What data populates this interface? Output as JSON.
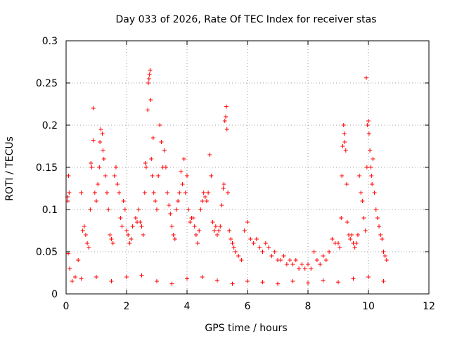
{
  "chart_data": {
    "type": "scatter",
    "title": "Day 033 of 2026, Rate Of TEC Index for receiver stas",
    "xlabel": "GPS time / hours",
    "ylabel": "ROTI / TECUs",
    "xlim": [
      0,
      12
    ],
    "ylim": [
      0,
      0.3
    ],
    "x_ticks": [
      "0",
      "2",
      "4",
      "6",
      "8",
      "10",
      "12"
    ],
    "x_tick_values": [
      0,
      2,
      4,
      6,
      8,
      10,
      12
    ],
    "y_ticks": [
      "0",
      "0.05",
      "0.1",
      "0.15",
      "0.2",
      "0.25",
      "0.3"
    ],
    "y_tick_values": [
      0,
      0.05,
      0.1,
      0.15,
      0.2,
      0.25,
      0.3
    ],
    "grid": true,
    "marker": "+",
    "color": "#ff0000",
    "data_x_range": [
      0,
      10.65
    ],
    "series": [
      {
        "name": "ROTI",
        "points": [
          [
            0.05,
            0.115
          ],
          [
            0.06,
            0.11
          ],
          [
            0.08,
            0.14
          ],
          [
            0.1,
            0.12
          ],
          [
            0.07,
            0.048
          ],
          [
            0.12,
            0.03
          ],
          [
            0.3,
            0.02
          ],
          [
            0.4,
            0.04
          ],
          [
            0.5,
            0.12
          ],
          [
            0.55,
            0.075
          ],
          [
            0.6,
            0.08
          ],
          [
            0.65,
            0.07
          ],
          [
            0.7,
            0.06
          ],
          [
            0.75,
            0.055
          ],
          [
            0.8,
            0.1
          ],
          [
            0.82,
            0.155
          ],
          [
            0.85,
            0.15
          ],
          [
            0.9,
            0.22
          ],
          [
            0.9,
            0.182
          ],
          [
            0.95,
            0.12
          ],
          [
            1.0,
            0.11
          ],
          [
            1.05,
            0.13
          ],
          [
            1.1,
            0.15
          ],
          [
            1.12,
            0.18
          ],
          [
            1.15,
            0.195
          ],
          [
            1.2,
            0.19
          ],
          [
            1.22,
            0.17
          ],
          [
            1.25,
            0.16
          ],
          [
            1.3,
            0.14
          ],
          [
            1.35,
            0.12
          ],
          [
            1.4,
            0.1
          ],
          [
            1.45,
            0.07
          ],
          [
            1.5,
            0.065
          ],
          [
            1.55,
            0.06
          ],
          [
            1.6,
            0.14
          ],
          [
            1.65,
            0.15
          ],
          [
            1.7,
            0.13
          ],
          [
            1.75,
            0.12
          ],
          [
            1.8,
            0.09
          ],
          [
            1.85,
            0.08
          ],
          [
            1.9,
            0.11
          ],
          [
            1.95,
            0.1
          ],
          [
            2.0,
            0.075
          ],
          [
            2.05,
            0.07
          ],
          [
            2.1,
            0.06
          ],
          [
            2.15,
            0.065
          ],
          [
            2.2,
            0.08
          ],
          [
            2.3,
            0.09
          ],
          [
            2.35,
            0.085
          ],
          [
            2.4,
            0.1
          ],
          [
            2.45,
            0.085
          ],
          [
            2.5,
            0.08
          ],
          [
            2.55,
            0.07
          ],
          [
            2.6,
            0.12
          ],
          [
            2.62,
            0.155
          ],
          [
            2.65,
            0.15
          ],
          [
            2.7,
            0.218
          ],
          [
            2.72,
            0.25
          ],
          [
            2.74,
            0.255
          ],
          [
            2.76,
            0.26
          ],
          [
            2.78,
            0.265
          ],
          [
            2.8,
            0.23
          ],
          [
            2.82,
            0.16
          ],
          [
            2.85,
            0.14
          ],
          [
            2.88,
            0.185
          ],
          [
            2.9,
            0.12
          ],
          [
            2.95,
            0.11
          ],
          [
            3.0,
            0.1
          ],
          [
            3.05,
            0.14
          ],
          [
            3.1,
            0.2
          ],
          [
            3.15,
            0.18
          ],
          [
            3.2,
            0.15
          ],
          [
            3.25,
            0.17
          ],
          [
            3.3,
            0.15
          ],
          [
            3.35,
            0.12
          ],
          [
            3.4,
            0.105
          ],
          [
            3.45,
            0.095
          ],
          [
            3.5,
            0.08
          ],
          [
            3.55,
            0.07
          ],
          [
            3.6,
            0.065
          ],
          [
            3.65,
            0.1
          ],
          [
            3.7,
            0.11
          ],
          [
            3.75,
            0.12
          ],
          [
            3.8,
            0.145
          ],
          [
            3.85,
            0.13
          ],
          [
            3.9,
            0.16
          ],
          [
            3.95,
            0.12
          ],
          [
            4.0,
            0.14
          ],
          [
            4.05,
            0.1
          ],
          [
            4.1,
            0.085
          ],
          [
            4.15,
            0.09
          ],
          [
            4.2,
            0.09
          ],
          [
            4.25,
            0.08
          ],
          [
            4.3,
            0.07
          ],
          [
            4.35,
            0.06
          ],
          [
            4.4,
            0.075
          ],
          [
            4.45,
            0.1
          ],
          [
            4.5,
            0.11
          ],
          [
            4.55,
            0.12
          ],
          [
            4.6,
            0.115
          ],
          [
            4.65,
            0.11
          ],
          [
            4.7,
            0.12
          ],
          [
            4.75,
            0.165
          ],
          [
            4.8,
            0.14
          ],
          [
            4.85,
            0.085
          ],
          [
            4.9,
            0.075
          ],
          [
            4.95,
            0.08
          ],
          [
            5.0,
            0.07
          ],
          [
            5.05,
            0.075
          ],
          [
            5.1,
            0.08
          ],
          [
            5.15,
            0.105
          ],
          [
            5.2,
            0.125
          ],
          [
            5.22,
            0.13
          ],
          [
            5.25,
            0.205
          ],
          [
            5.28,
            0.21
          ],
          [
            5.3,
            0.222
          ],
          [
            5.32,
            0.195
          ],
          [
            5.35,
            0.12
          ],
          [
            5.4,
            0.075
          ],
          [
            5.45,
            0.065
          ],
          [
            5.5,
            0.06
          ],
          [
            5.55,
            0.055
          ],
          [
            5.6,
            0.05
          ],
          [
            5.7,
            0.045
          ],
          [
            5.8,
            0.04
          ],
          [
            5.9,
            0.075
          ],
          [
            6.0,
            0.085
          ],
          [
            6.1,
            0.065
          ],
          [
            6.2,
            0.06
          ],
          [
            6.3,
            0.065
          ],
          [
            6.4,
            0.055
          ],
          [
            6.5,
            0.05
          ],
          [
            6.6,
            0.06
          ],
          [
            6.7,
            0.055
          ],
          [
            6.8,
            0.045
          ],
          [
            6.9,
            0.05
          ],
          [
            7.0,
            0.04
          ],
          [
            7.1,
            0.04
          ],
          [
            7.2,
            0.045
          ],
          [
            7.3,
            0.035
          ],
          [
            7.4,
            0.04
          ],
          [
            7.5,
            0.035
          ],
          [
            7.6,
            0.04
          ],
          [
            7.7,
            0.03
          ],
          [
            7.8,
            0.035
          ],
          [
            7.9,
            0.03
          ],
          [
            8.0,
            0.035
          ],
          [
            8.1,
            0.03
          ],
          [
            8.2,
            0.05
          ],
          [
            8.3,
            0.04
          ],
          [
            8.4,
            0.035
          ],
          [
            8.5,
            0.045
          ],
          [
            8.6,
            0.04
          ],
          [
            8.7,
            0.05
          ],
          [
            8.8,
            0.065
          ],
          [
            8.9,
            0.06
          ],
          [
            9.0,
            0.06
          ],
          [
            9.05,
            0.055
          ],
          [
            9.1,
            0.09
          ],
          [
            9.12,
            0.14
          ],
          [
            9.15,
            0.175
          ],
          [
            9.18,
            0.2
          ],
          [
            9.2,
            0.19
          ],
          [
            9.22,
            0.18
          ],
          [
            9.25,
            0.17
          ],
          [
            9.28,
            0.13
          ],
          [
            9.3,
            0.085
          ],
          [
            9.35,
            0.07
          ],
          [
            9.4,
            0.065
          ],
          [
            9.45,
            0.07
          ],
          [
            9.5,
            0.06
          ],
          [
            9.55,
            0.055
          ],
          [
            9.6,
            0.06
          ],
          [
            9.65,
            0.07
          ],
          [
            9.7,
            0.14
          ],
          [
            9.75,
            0.12
          ],
          [
            9.8,
            0.11
          ],
          [
            9.85,
            0.09
          ],
          [
            9.9,
            0.075
          ],
          [
            9.93,
            0.256
          ],
          [
            9.95,
            0.15
          ],
          [
            9.97,
            0.2
          ],
          [
            10.0,
            0.205
          ],
          [
            10.02,
            0.19
          ],
          [
            10.05,
            0.17
          ],
          [
            10.08,
            0.15
          ],
          [
            10.1,
            0.14
          ],
          [
            10.12,
            0.13
          ],
          [
            10.15,
            0.16
          ],
          [
            10.2,
            0.12
          ],
          [
            10.25,
            0.1
          ],
          [
            10.3,
            0.09
          ],
          [
            10.35,
            0.08
          ],
          [
            10.4,
            0.07
          ],
          [
            10.45,
            0.065
          ],
          [
            10.5,
            0.05
          ],
          [
            10.55,
            0.045
          ],
          [
            10.6,
            0.04
          ],
          [
            0.2,
            0.015
          ],
          [
            0.5,
            0.018
          ],
          [
            1.0,
            0.02
          ],
          [
            1.5,
            0.015
          ],
          [
            2.0,
            0.02
          ],
          [
            2.5,
            0.022
          ],
          [
            3.0,
            0.015
          ],
          [
            3.5,
            0.012
          ],
          [
            4.0,
            0.018
          ],
          [
            4.5,
            0.02
          ],
          [
            5.0,
            0.016
          ],
          [
            5.5,
            0.012
          ],
          [
            6.0,
            0.015
          ],
          [
            6.5,
            0.014
          ],
          [
            7.0,
            0.012
          ],
          [
            7.5,
            0.015
          ],
          [
            8.0,
            0.013
          ],
          [
            8.5,
            0.016
          ],
          [
            9.0,
            0.014
          ],
          [
            9.5,
            0.018
          ],
          [
            10.0,
            0.02
          ],
          [
            10.5,
            0.015
          ]
        ]
      }
    ]
  }
}
